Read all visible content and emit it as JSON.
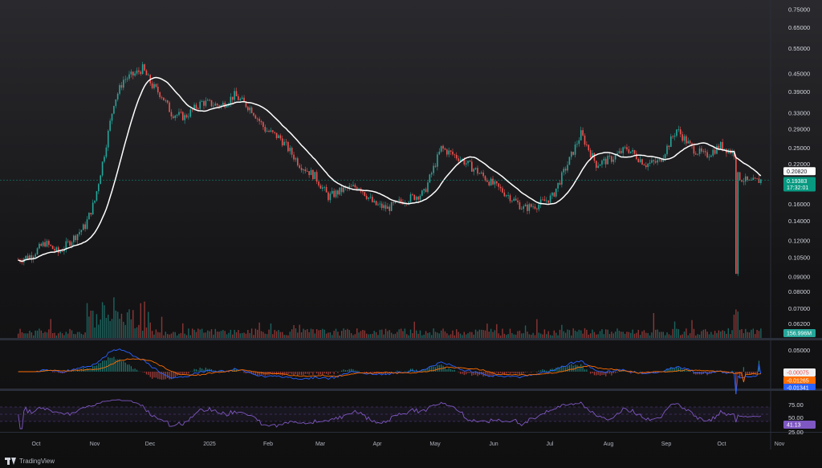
{
  "chart_data": [
    {
      "type": "candlestick",
      "title": "",
      "price_axis": {
        "scale": "log",
        "ticks": [
          "0.75000",
          "0.65000",
          "0.55000",
          "0.45000",
          "0.39000",
          "0.33000",
          "0.29000",
          "0.25000",
          "0.22000",
          "0.18000",
          "0.16000",
          "0.14000",
          "0.12000",
          "0.10500",
          "0.09000",
          "0.08000",
          "0.07000",
          "0.06200"
        ]
      },
      "time_axis": {
        "labels": [
          "Oct",
          "Nov",
          "Dec",
          "2025",
          "Feb",
          "Mar",
          "Apr",
          "May",
          "Jun",
          "Jul",
          "Aug",
          "Sep",
          "Oct",
          "Nov"
        ]
      },
      "price_path_points": [
        [
          "2024-10-01",
          0.103
        ],
        [
          "2024-10-08",
          0.107
        ],
        [
          "2024-10-15",
          0.118
        ],
        [
          "2024-10-22",
          0.109
        ],
        [
          "2024-10-29",
          0.121
        ],
        [
          "2024-11-05",
          0.135
        ],
        [
          "2024-11-10",
          0.165
        ],
        [
          "2024-11-15",
          0.24
        ],
        [
          "2024-11-20",
          0.36
        ],
        [
          "2024-11-25",
          0.43
        ],
        [
          "2024-12-01",
          0.45
        ],
        [
          "2024-12-05",
          0.47
        ],
        [
          "2024-12-10",
          0.41
        ],
        [
          "2024-12-15",
          0.38
        ],
        [
          "2024-12-20",
          0.33
        ],
        [
          "2024-12-27",
          0.32
        ],
        [
          "2025-01-05",
          0.36
        ],
        [
          "2025-01-15",
          0.35
        ],
        [
          "2025-01-22",
          0.38
        ],
        [
          "2025-01-31",
          0.34
        ],
        [
          "2025-02-07",
          0.29
        ],
        [
          "2025-02-15",
          0.27
        ],
        [
          "2025-02-25",
          0.22
        ],
        [
          "2025-03-05",
          0.2
        ],
        [
          "2025-03-12",
          0.17
        ],
        [
          "2025-03-20",
          0.18
        ],
        [
          "2025-03-28",
          0.185
        ],
        [
          "2025-04-05",
          0.16
        ],
        [
          "2025-04-12",
          0.155
        ],
        [
          "2025-04-20",
          0.165
        ],
        [
          "2025-05-01",
          0.175
        ],
        [
          "2025-05-10",
          0.25
        ],
        [
          "2025-05-20",
          0.23
        ],
        [
          "2025-05-28",
          0.21
        ],
        [
          "2025-06-05",
          0.19
        ],
        [
          "2025-06-15",
          0.17
        ],
        [
          "2025-06-22",
          0.155
        ],
        [
          "2025-06-30",
          0.16
        ],
        [
          "2025-07-07",
          0.17
        ],
        [
          "2025-07-15",
          0.22
        ],
        [
          "2025-07-22",
          0.28
        ],
        [
          "2025-07-30",
          0.22
        ],
        [
          "2025-08-07",
          0.23
        ],
        [
          "2025-08-15",
          0.25
        ],
        [
          "2025-08-25",
          0.22
        ],
        [
          "2025-09-01",
          0.225
        ],
        [
          "2025-09-10",
          0.29
        ],
        [
          "2025-09-18",
          0.25
        ],
        [
          "2025-09-25",
          0.235
        ],
        [
          "2025-10-03",
          0.255
        ],
        [
          "2025-10-10",
          0.24
        ],
        [
          "2025-10-11",
          0.095
        ],
        [
          "2025-10-12",
          0.2
        ],
        [
          "2025-10-18",
          0.19
        ],
        [
          "2025-10-24",
          0.194
        ]
      ],
      "moving_average_last": "0.20820",
      "last_price": "0.19383",
      "countdown": "17:32:01"
    },
    {
      "type": "bar",
      "name": "volume",
      "last_value": "156.996M",
      "colors": {
        "up": "#26a69a",
        "down": "#ef5350"
      }
    },
    {
      "type": "line",
      "name": "macd",
      "axis_tick": "0.05000",
      "values": {
        "histogram": "-0.00075",
        "signal": "-0.01265",
        "macd": "-0.01341"
      },
      "colors": {
        "macd": "#2962ff",
        "signal": "#ff6d00"
      }
    },
    {
      "type": "line",
      "name": "rsi",
      "axis_ticks": [
        "75.00",
        "50.00",
        "25.00"
      ],
      "last_value": "41.13",
      "color": "#7e57c2"
    }
  ],
  "colors": {
    "up": "#26a69a",
    "down": "#ef5350",
    "ma": "#ffffff",
    "last_price_tag": "#089981",
    "rsi": "#7e57c2",
    "macd": "#2962ff",
    "signal": "#ff6d00"
  },
  "brand": {
    "name": "TradingView",
    "icon": "tradingview-logo-icon"
  }
}
